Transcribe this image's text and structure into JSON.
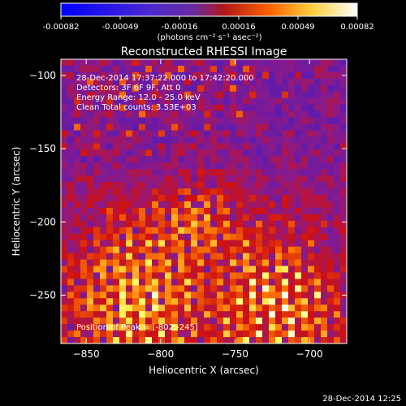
{
  "colorbar": {
    "ticks": [
      "-0.00082",
      "-0.00049",
      "-0.00016",
      "0.00016",
      "0.00049",
      "0.00082"
    ],
    "units_label": "(photons cm⁻² s⁻¹ asec⁻²)"
  },
  "chart_data": {
    "type": "heatmap",
    "title": "Reconstructed RHESSI Image",
    "xlabel": "Heliocentric X (arcsec)",
    "ylabel": "Heliocentric Y (arcsec)",
    "xlim": [
      -867,
      -675
    ],
    "ylim": [
      -283,
      -89
    ],
    "x_ticks": [
      -850,
      -800,
      -750,
      -700
    ],
    "y_ticks": [
      -100,
      -150,
      -200,
      -250
    ],
    "x_tick_labels": [
      "−850",
      "−800",
      "−750",
      "−700"
    ],
    "y_tick_labels": [
      "−100",
      "−150",
      "−200",
      "−250"
    ],
    "value_range": [
      -0.00082,
      0.00082
    ],
    "grid": false,
    "peak": {
      "x": -802,
      "y": -245
    },
    "annotations": [
      "28-Dec-2014 17:37:22.000 to 17:42:20.000",
      "Detectors: 3F 6F 9F, Att 0",
      "Energy Range: 12.0 - 25.0 keV",
      "Clean     Total counts: 3.53E+03"
    ],
    "peak_label": "Position of Peak = [-802,-245]",
    "colorscale": [
      "#0000ff",
      "#5a1bb0",
      "#8a1a8a",
      "#d01010",
      "#ff7a00",
      "#ffff60",
      "#ffffff"
    ]
  },
  "footer": {
    "timestamp": "28-Dec-2014 12:25"
  }
}
